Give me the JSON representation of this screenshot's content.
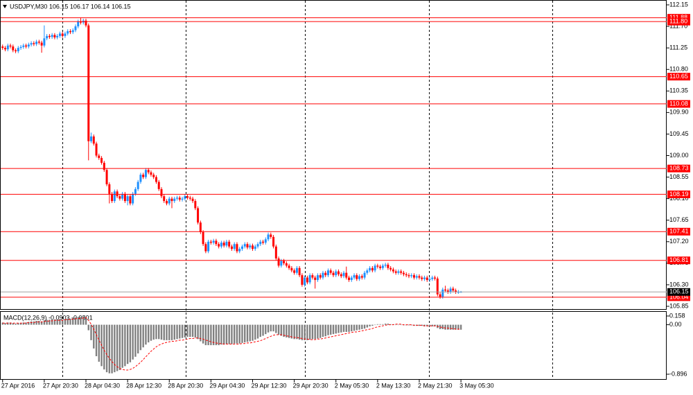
{
  "chart_data": [
    {
      "type": "candlestick",
      "title": "USDJPY,M30  106.15 106.17 106.14 106.15",
      "xlim": [
        -1,
        255
      ],
      "xticks": [
        {
          "value": 0,
          "label": "27 Apr 2016"
        },
        {
          "value": 16,
          "label": "27 Apr 20:30"
        },
        {
          "value": 32,
          "label": "28 Apr 04:30"
        },
        {
          "value": 48,
          "label": "28 Apr 12:30"
        },
        {
          "value": 64,
          "label": "28 Apr 20:30"
        },
        {
          "value": 80,
          "label": "29 Apr 04:30"
        },
        {
          "value": 96,
          "label": "29 Apr 12:30"
        },
        {
          "value": 112,
          "label": "29 Apr 20:30"
        },
        {
          "value": 128,
          "label": "2 May 05:30"
        },
        {
          "value": 144,
          "label": "2 May 13:30"
        },
        {
          "value": 160,
          "label": "2 May 21:30"
        },
        {
          "value": 176,
          "label": "3 May 05:30"
        }
      ],
      "ylim": [
        105.85,
        112.15
      ],
      "yticks": [
        112.15,
        {
          "value": 111.7,
          "label": "111.70"
        },
        111.25,
        {
          "value": 110.8,
          "label": "110.80"
        },
        110.35,
        {
          "value": 109.9,
          "label": "109.90"
        },
        109.45,
        {
          "value": 109,
          "label": "109.00"
        },
        108.55,
        {
          "value": 108.1,
          "label": "108.10"
        },
        107.65,
        {
          "value": 107.2,
          "label": "107.20"
        },
        106.75,
        {
          "value": 106.3,
          "label": "106.30"
        },
        105.85
      ],
      "up_color": "#1e90ff",
      "down_color": "#ff0000",
      "levels": [
        111.88,
        {
          "value": 111.8,
          "label": "111.80"
        },
        110.65,
        110.08,
        108.73,
        108.19,
        107.41,
        106.81,
        106.04
      ],
      "level_color": "#ff0000",
      "last_price": 106.15,
      "open": [
        111.28,
        111.25,
        111.22,
        111.3,
        111.28,
        111.2,
        111.18,
        111.25,
        111.27,
        111.3,
        111.28,
        111.32,
        111.35,
        111.33,
        111.38,
        111.36,
        111.3,
        111.45,
        111.5,
        111.48,
        111.52,
        111.47,
        111.5,
        111.55,
        111.5,
        111.55,
        111.6,
        111.58,
        111.62,
        111.7,
        111.8,
        111.78,
        111.82,
        111.72,
        109.3,
        109.4,
        109.25,
        109.0,
        108.95,
        108.85,
        108.7,
        108.4,
        108.2,
        108.05,
        108.25,
        108.15,
        108.1,
        108.2,
        108.05,
        108.15,
        108.0,
        108.2,
        108.3,
        108.45,
        108.6,
        108.55,
        108.7,
        108.65,
        108.6,
        108.55,
        108.45,
        108.3,
        108.15,
        108.05,
        108.0,
        108.1,
        108.05,
        108.1,
        108.12,
        108.08,
        108.1,
        108.15,
        108.12,
        108.1,
        108.05,
        107.9,
        107.6,
        107.4,
        107.15,
        107.0,
        107.2,
        107.18,
        107.22,
        107.15,
        107.1,
        107.18,
        107.12,
        107.2,
        107.1,
        107.05,
        107.15,
        107.0,
        107.05,
        107.1,
        107.15,
        107.08,
        107.12,
        107.05,
        107.1,
        107.15,
        107.2,
        107.18,
        107.25,
        107.35,
        107.3,
        107.1,
        106.85,
        106.7,
        106.8,
        106.75,
        106.7,
        106.65,
        106.6,
        106.55,
        106.65,
        106.5,
        106.3,
        106.45,
        106.35,
        106.5,
        106.45,
        106.4,
        106.5,
        106.45,
        106.55,
        106.5,
        106.6,
        106.55,
        106.5,
        106.58,
        106.52,
        106.48,
        106.55,
        106.45,
        106.4,
        106.45,
        106.5,
        106.42,
        106.48,
        106.45,
        106.55,
        106.6,
        106.65,
        106.6,
        106.7,
        106.68,
        106.65,
        106.7,
        106.72,
        106.65,
        106.62,
        106.58,
        106.55,
        106.58,
        106.55,
        106.52,
        106.5,
        106.48,
        106.5,
        106.45,
        106.48,
        106.45,
        106.42,
        106.45,
        106.4,
        106.42,
        106.45,
        106.43,
        106.1,
        106.05,
        106.2,
        106.18,
        106.15,
        106.22,
        106.18,
        106.15,
        106.15
      ],
      "high": [
        111.32,
        111.29,
        111.34,
        111.34,
        111.32,
        111.24,
        111.29,
        111.31,
        111.34,
        111.34,
        111.36,
        111.39,
        111.39,
        111.42,
        111.42,
        111.4,
        111.72,
        111.54,
        111.54,
        111.56,
        111.56,
        111.54,
        111.59,
        111.59,
        111.59,
        111.64,
        111.64,
        111.66,
        111.74,
        111.84,
        111.88,
        111.86,
        111.86,
        111.76,
        109.48,
        109.44,
        109.29,
        109.04,
        108.99,
        108.89,
        108.74,
        108.44,
        108.24,
        108.29,
        108.29,
        108.19,
        108.24,
        108.24,
        108.19,
        108.19,
        108.24,
        108.34,
        108.49,
        108.64,
        108.64,
        108.74,
        108.74,
        108.69,
        108.64,
        108.59,
        108.49,
        108.34,
        108.19,
        108.09,
        108.14,
        108.14,
        108.14,
        108.16,
        108.16,
        108.14,
        108.19,
        108.19,
        108.16,
        108.14,
        108.09,
        107.94,
        107.64,
        107.44,
        107.19,
        107.24,
        107.24,
        107.26,
        107.26,
        107.19,
        107.22,
        107.22,
        107.24,
        107.24,
        107.14,
        107.19,
        107.19,
        107.09,
        107.14,
        107.19,
        107.19,
        107.16,
        107.16,
        107.14,
        107.19,
        107.24,
        107.24,
        107.29,
        107.39,
        107.39,
        107.34,
        107.14,
        106.89,
        106.84,
        106.84,
        106.79,
        106.74,
        106.69,
        106.64,
        106.69,
        106.69,
        106.54,
        106.49,
        106.49,
        106.54,
        106.54,
        106.49,
        106.54,
        106.54,
        106.59,
        106.59,
        106.64,
        106.64,
        106.59,
        106.62,
        106.62,
        106.56,
        106.59,
        106.68,
        106.49,
        106.49,
        106.54,
        106.54,
        106.52,
        106.52,
        106.59,
        106.64,
        106.69,
        106.69,
        106.74,
        106.74,
        106.72,
        106.74,
        106.76,
        106.76,
        106.69,
        106.66,
        106.62,
        106.62,
        106.62,
        106.59,
        106.56,
        106.54,
        106.54,
        106.54,
        106.52,
        106.52,
        106.49,
        106.49,
        106.49,
        106.46,
        106.49,
        106.49,
        106.47,
        106.14,
        106.24,
        106.28,
        106.22,
        106.26,
        106.26,
        106.22,
        106.19,
        106.17
      ],
      "low": [
        111.21,
        111.18,
        111.18,
        111.24,
        111.16,
        111.14,
        111.14,
        111.21,
        111.23,
        111.24,
        111.24,
        111.28,
        111.29,
        111.29,
        111.32,
        111.15,
        111.26,
        111.41,
        111.44,
        111.44,
        111.43,
        111.43,
        111.46,
        111.46,
        111.46,
        111.51,
        111.54,
        111.54,
        111.58,
        111.66,
        111.74,
        111.74,
        111.68,
        108.9,
        109.26,
        109.21,
        108.96,
        108.91,
        108.81,
        108.66,
        108.36,
        108.0,
        108.01,
        108.01,
        108.11,
        108.06,
        108.06,
        108.01,
        107.96,
        107.96,
        107.96,
        108.16,
        108.26,
        108.41,
        108.51,
        108.51,
        108.61,
        108.56,
        108.51,
        108.41,
        108.26,
        108.11,
        108.01,
        107.96,
        107.96,
        107.9,
        108.01,
        108.06,
        108.04,
        108.04,
        108.06,
        108.08,
        108.06,
        108.01,
        107.86,
        107.56,
        107.36,
        107.11,
        106.96,
        106.96,
        107.14,
        107.14,
        107.11,
        107.06,
        107.06,
        107.08,
        107.08,
        107.06,
        107.01,
        107.01,
        106.96,
        106.96,
        107.01,
        107.06,
        107.04,
        107.04,
        107.01,
        107.01,
        107.06,
        107.11,
        107.14,
        107.14,
        107.21,
        107.26,
        107.06,
        106.81,
        106.66,
        106.66,
        106.71,
        106.66,
        106.61,
        106.56,
        106.51,
        106.51,
        106.46,
        106.26,
        106.26,
        106.31,
        106.31,
        106.41,
        106.22,
        106.36,
        106.41,
        106.41,
        106.46,
        106.46,
        106.51,
        106.46,
        106.46,
        106.48,
        106.44,
        106.44,
        106.41,
        106.36,
        106.36,
        106.41,
        106.38,
        106.38,
        106.41,
        106.41,
        106.51,
        106.56,
        106.56,
        106.56,
        106.64,
        106.61,
        106.61,
        106.66,
        106.61,
        106.58,
        106.54,
        106.51,
        106.51,
        106.51,
        106.48,
        106.46,
        106.44,
        106.44,
        106.41,
        106.41,
        106.41,
        106.38,
        106.38,
        106.36,
        106.36,
        106.38,
        106.39,
        106.06,
        106.01,
        106.01,
        106.14,
        106.11,
        106.11,
        106.14,
        106.11,
        106.11,
        106.14
      ],
      "close": [
        111.25,
        111.22,
        111.3,
        111.28,
        111.2,
        111.18,
        111.25,
        111.27,
        111.3,
        111.28,
        111.32,
        111.35,
        111.33,
        111.38,
        111.36,
        111.3,
        111.45,
        111.5,
        111.48,
        111.52,
        111.47,
        111.5,
        111.55,
        111.5,
        111.55,
        111.6,
        111.58,
        111.62,
        111.7,
        111.8,
        111.78,
        111.82,
        111.72,
        109.3,
        109.4,
        109.25,
        109.0,
        108.95,
        108.85,
        108.7,
        108.4,
        108.2,
        108.05,
        108.25,
        108.15,
        108.1,
        108.2,
        108.05,
        108.15,
        108.0,
        108.2,
        108.3,
        108.45,
        108.6,
        108.55,
        108.7,
        108.65,
        108.6,
        108.55,
        108.45,
        108.3,
        108.15,
        108.05,
        108.0,
        108.1,
        108.05,
        108.1,
        108.12,
        108.08,
        108.1,
        108.15,
        108.12,
        108.1,
        108.05,
        107.9,
        107.6,
        107.4,
        107.15,
        107.0,
        107.2,
        107.18,
        107.22,
        107.15,
        107.1,
        107.18,
        107.12,
        107.2,
        107.1,
        107.05,
        107.15,
        107.0,
        107.05,
        107.1,
        107.15,
        107.08,
        107.12,
        107.05,
        107.1,
        107.15,
        107.2,
        107.18,
        107.25,
        107.35,
        107.3,
        107.1,
        106.85,
        106.7,
        106.8,
        106.75,
        106.7,
        106.65,
        106.6,
        106.55,
        106.65,
        106.5,
        106.3,
        106.45,
        106.35,
        106.5,
        106.45,
        106.4,
        106.5,
        106.45,
        106.55,
        106.5,
        106.6,
        106.55,
        106.5,
        106.58,
        106.52,
        106.48,
        106.55,
        106.45,
        106.4,
        106.45,
        106.5,
        106.42,
        106.48,
        106.45,
        106.55,
        106.6,
        106.65,
        106.6,
        106.7,
        106.68,
        106.65,
        106.7,
        106.72,
        106.65,
        106.62,
        106.58,
        106.55,
        106.58,
        106.55,
        106.52,
        106.5,
        106.48,
        106.5,
        106.45,
        106.48,
        106.45,
        106.42,
        106.45,
        106.4,
        106.42,
        106.45,
        106.43,
        106.1,
        106.05,
        106.2,
        106.18,
        106.15,
        106.22,
        106.18,
        106.15,
        106.15,
        106.15
      ]
    },
    {
      "type": "macd",
      "title": "MACD(12,26,9) -0.0903 -0.0801",
      "xlim": [
        -1,
        255
      ],
      "ylim": [
        -0.896,
        0.158
      ],
      "yticks": [
        0.158,
        {
          "value": 0,
          "label": "0.00"
        },
        -0.896
      ],
      "color": "#808080",
      "signal_color": "#ff0000",
      "values": [
        0.04,
        0.03,
        0.04,
        0.04,
        0.03,
        0.02,
        0.03,
        0.03,
        0.04,
        0.04,
        0.05,
        0.06,
        0.06,
        0.07,
        0.07,
        0.06,
        0.08,
        0.09,
        0.09,
        0.1,
        0.09,
        0.09,
        0.1,
        0.09,
        0.1,
        0.11,
        0.11,
        0.12,
        0.13,
        0.14,
        0.14,
        0.15,
        0.13,
        -0.1,
        -0.28,
        -0.43,
        -0.57,
        -0.67,
        -0.75,
        -0.81,
        -0.86,
        -0.88,
        -0.88,
        -0.86,
        -0.84,
        -0.82,
        -0.78,
        -0.75,
        -0.71,
        -0.68,
        -0.63,
        -0.58,
        -0.52,
        -0.46,
        -0.41,
        -0.36,
        -0.32,
        -0.29,
        -0.27,
        -0.26,
        -0.26,
        -0.27,
        -0.28,
        -0.28,
        -0.28,
        -0.28,
        -0.27,
        -0.26,
        -0.25,
        -0.24,
        -0.23,
        -0.22,
        -0.22,
        -0.22,
        -0.23,
        -0.26,
        -0.3,
        -0.34,
        -0.37,
        -0.37,
        -0.37,
        -0.37,
        -0.37,
        -0.37,
        -0.36,
        -0.36,
        -0.35,
        -0.35,
        -0.35,
        -0.34,
        -0.34,
        -0.34,
        -0.33,
        -0.32,
        -0.31,
        -0.3,
        -0.29,
        -0.27,
        -0.25,
        -0.22,
        -0.2,
        -0.17,
        -0.14,
        -0.12,
        -0.12,
        -0.15,
        -0.18,
        -0.2,
        -0.22,
        -0.23,
        -0.24,
        -0.25,
        -0.26,
        -0.26,
        -0.27,
        -0.28,
        -0.28,
        -0.28,
        -0.27,
        -0.26,
        -0.26,
        -0.25,
        -0.24,
        -0.22,
        -0.21,
        -0.19,
        -0.18,
        -0.17,
        -0.16,
        -0.15,
        -0.14,
        -0.13,
        -0.13,
        -0.13,
        -0.12,
        -0.11,
        -0.1,
        -0.09,
        -0.08,
        -0.07,
        -0.05,
        -0.03,
        -0.02,
        0.0,
        0.01,
        0.01,
        0.01,
        0.02,
        0.02,
        0.01,
        0.01,
        0.0,
        0.0,
        0.0,
        -0.01,
        -0.01,
        -0.01,
        -0.01,
        -0.02,
        -0.02,
        -0.02,
        -0.02,
        -0.03,
        -0.03,
        -0.03,
        -0.03,
        -0.03,
        -0.06,
        -0.08,
        -0.08,
        -0.09,
        -0.09,
        -0.09,
        -0.09,
        -0.09,
        -0.09,
        -0.09
      ],
      "signal": [
        0.03,
        0.03,
        0.03,
        0.03,
        0.03,
        0.03,
        0.03,
        0.03,
        0.03,
        0.03,
        0.04,
        0.04,
        0.04,
        0.05,
        0.05,
        0.05,
        0.06,
        0.06,
        0.07,
        0.07,
        0.08,
        0.08,
        0.08,
        0.08,
        0.09,
        0.09,
        0.1,
        0.1,
        0.11,
        0.11,
        0.12,
        0.12,
        0.13,
        0.08,
        0.01,
        -0.08,
        -0.18,
        -0.28,
        -0.37,
        -0.46,
        -0.54,
        -0.61,
        -0.67,
        -0.72,
        -0.76,
        -0.79,
        -0.81,
        -0.82,
        -0.82,
        -0.81,
        -0.79,
        -0.76,
        -0.72,
        -0.68,
        -0.63,
        -0.58,
        -0.53,
        -0.48,
        -0.44,
        -0.4,
        -0.37,
        -0.35,
        -0.33,
        -0.32,
        -0.31,
        -0.3,
        -0.3,
        -0.29,
        -0.28,
        -0.28,
        -0.27,
        -0.26,
        -0.25,
        -0.25,
        -0.24,
        -0.24,
        -0.25,
        -0.26,
        -0.28,
        -0.29,
        -0.31,
        -0.32,
        -0.33,
        -0.34,
        -0.34,
        -0.35,
        -0.35,
        -0.35,
        -0.35,
        -0.35,
        -0.35,
        -0.35,
        -0.34,
        -0.34,
        -0.33,
        -0.33,
        -0.32,
        -0.31,
        -0.3,
        -0.29,
        -0.27,
        -0.25,
        -0.23,
        -0.21,
        -0.19,
        -0.18,
        -0.18,
        -0.18,
        -0.19,
        -0.2,
        -0.21,
        -0.22,
        -0.23,
        -0.23,
        -0.24,
        -0.25,
        -0.26,
        -0.26,
        -0.27,
        -0.27,
        -0.27,
        -0.26,
        -0.26,
        -0.25,
        -0.24,
        -0.23,
        -0.22,
        -0.21,
        -0.2,
        -0.19,
        -0.18,
        -0.17,
        -0.16,
        -0.15,
        -0.14,
        -0.13,
        -0.13,
        -0.12,
        -0.11,
        -0.1,
        -0.09,
        -0.08,
        -0.07,
        -0.05,
        -0.04,
        -0.03,
        -0.02,
        -0.01,
        0.0,
        0.0,
        0.0,
        0.01,
        0.01,
        0.01,
        0.0,
        0.0,
        0.0,
        0.0,
        -0.01,
        -0.01,
        -0.01,
        -0.01,
        -0.02,
        -0.02,
        -0.02,
        -0.02,
        -0.02,
        -0.03,
        -0.04,
        -0.05,
        -0.06,
        -0.06,
        -0.07,
        -0.07,
        -0.08,
        -0.08,
        -0.08
      ]
    }
  ]
}
